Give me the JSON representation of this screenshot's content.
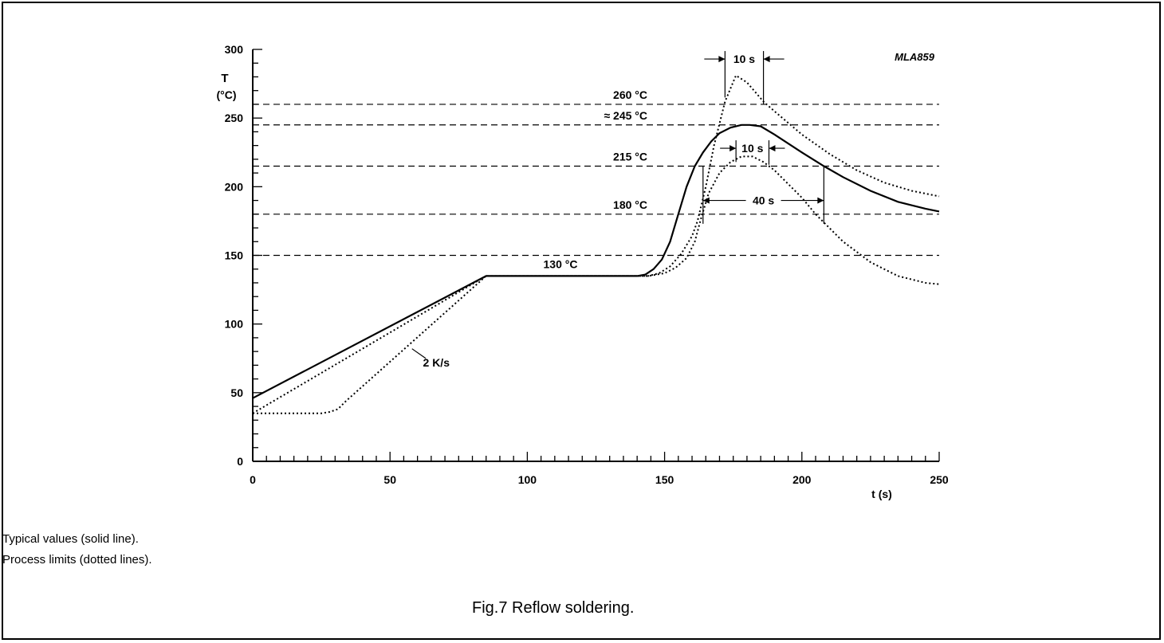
{
  "chart_data": {
    "type": "line",
    "code": "MLA859",
    "ylabel": "T",
    "yunit": "(°C)",
    "xlabel": "t (s)",
    "xlim": [
      0,
      250
    ],
    "ylim": [
      0,
      300
    ],
    "x_ticks": [
      0,
      50,
      100,
      150,
      200,
      250
    ],
    "y_ticks": [
      0,
      50,
      100,
      150,
      200,
      250,
      300
    ],
    "reference_lines": [
      {
        "y": 260,
        "label": "260 °C"
      },
      {
        "y": 245,
        "label": "≈ 245 °C"
      },
      {
        "y": 215,
        "label": "215 °C"
      },
      {
        "y": 180,
        "label": "180 °C"
      },
      {
        "y": 150,
        "label": ""
      }
    ],
    "plateau_label": "130 °C",
    "slope_label": "2 K/s",
    "durations": [
      {
        "label": "10 s",
        "from": 172,
        "to": 186,
        "y": 293
      },
      {
        "label": "10 s",
        "from": 176,
        "to": 188,
        "y": 228
      },
      {
        "label": "40 s",
        "from": 164,
        "to": 208,
        "y": 190
      }
    ],
    "series": [
      {
        "style": "solid",
        "x": [
          0,
          85,
          100,
          120,
          140,
          143,
          146,
          149,
          152,
          155,
          158,
          161,
          164,
          167,
          170,
          174,
          178,
          181,
          185,
          190,
          200,
          208,
          215,
          225,
          235,
          245,
          250
        ],
        "y": [
          46,
          135,
          135,
          135,
          135,
          136,
          140,
          147,
          160,
          180,
          200,
          215,
          225,
          233,
          239,
          243,
          245,
          245,
          244,
          238,
          225,
          215,
          207,
          197,
          189,
          184,
          182
        ]
      },
      {
        "style": "dotted",
        "x": [
          0,
          25,
          28,
          31,
          34,
          85,
          100,
          120,
          144,
          148,
          152,
          156,
          160,
          162,
          165,
          168,
          172,
          176,
          180,
          186,
          190,
          200,
          210,
          220,
          230,
          240,
          250
        ],
        "y": [
          35,
          35,
          36,
          38,
          44,
          135,
          135,
          135,
          135,
          137,
          142,
          151,
          164,
          175,
          200,
          230,
          262,
          281,
          276,
          262,
          255,
          238,
          224,
          212,
          203,
          197,
          193
        ]
      },
      {
        "style": "dotted",
        "x": [
          0,
          85,
          100,
          120,
          144,
          150,
          154,
          158,
          161,
          163,
          166,
          170,
          174,
          178,
          182,
          186,
          190,
          195,
          200,
          205,
          215,
          225,
          235,
          245,
          250
        ],
        "y": [
          35,
          135,
          135,
          135,
          135,
          137,
          141,
          148,
          160,
          175,
          195,
          210,
          218,
          222,
          222,
          218,
          212,
          202,
          192,
          180,
          160,
          145,
          135,
          130,
          129
        ]
      }
    ]
  },
  "notes": {
    "line1": "Typical values (solid line).",
    "line2": "Process limits (dotted lines)."
  },
  "caption": "Fig.7  Reflow soldering."
}
